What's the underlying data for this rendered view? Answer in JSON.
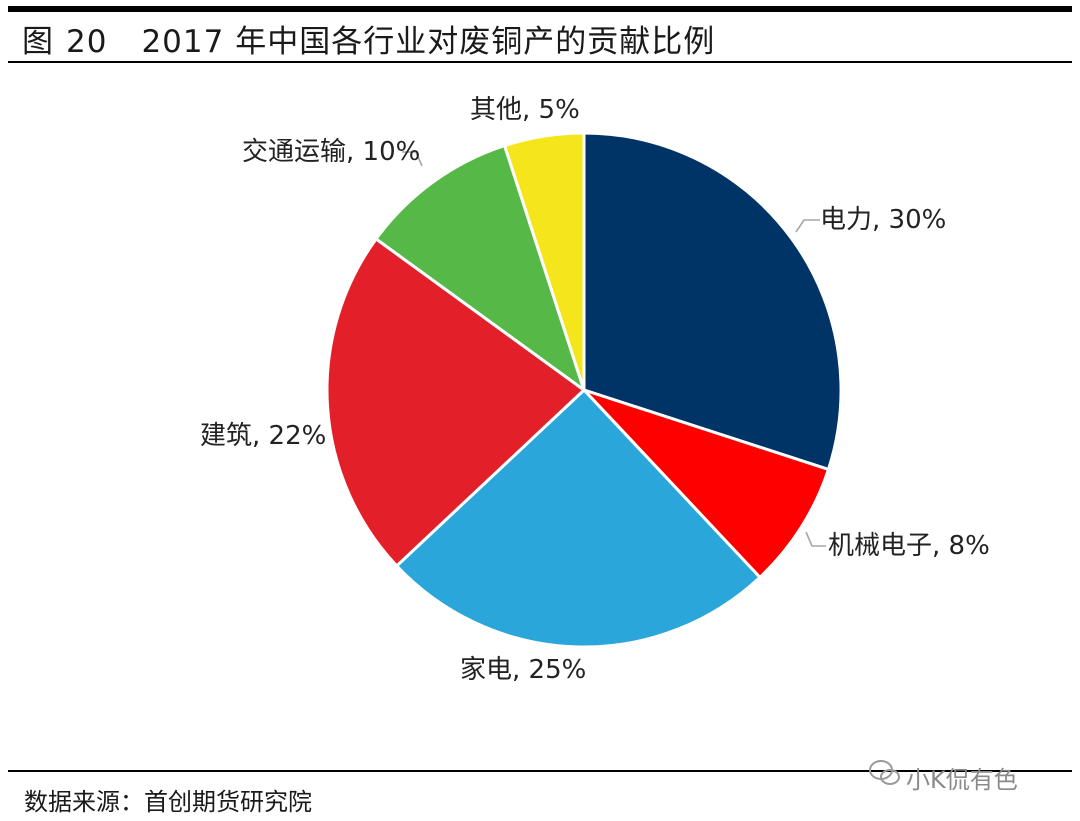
{
  "header": {
    "figure_prefix": "图",
    "figure_number": "20",
    "title_text": "2017 年中国各行业对废铜产的贡献比例"
  },
  "footer": {
    "source": "数据来源：首创期货研究院",
    "watermark": "小K侃有色"
  },
  "chart_data": {
    "type": "pie",
    "title": "2017 年中国各行业对废铜产的贡献比例",
    "slices": [
      {
        "name": "电力",
        "value": 30,
        "label": "电力, 30%",
        "color": "#003366"
      },
      {
        "name": "机械电子",
        "value": 8,
        "label": "机械电子, 8%",
        "color": "#ff0000"
      },
      {
        "name": "家电",
        "value": 25,
        "label": "家电, 25%",
        "color": "#2aa6da"
      },
      {
        "name": "建筑",
        "value": 22,
        "label": "建筑, 22%",
        "color": "#e3202a"
      },
      {
        "name": "交通运输",
        "value": 10,
        "label": "交通运输, 10%",
        "color": "#55b847"
      },
      {
        "name": "其他",
        "value": 5,
        "label": "其他, 5%",
        "color": "#f5e51b"
      }
    ],
    "start_angle": "12 o'clock",
    "direction": "clockwise"
  }
}
